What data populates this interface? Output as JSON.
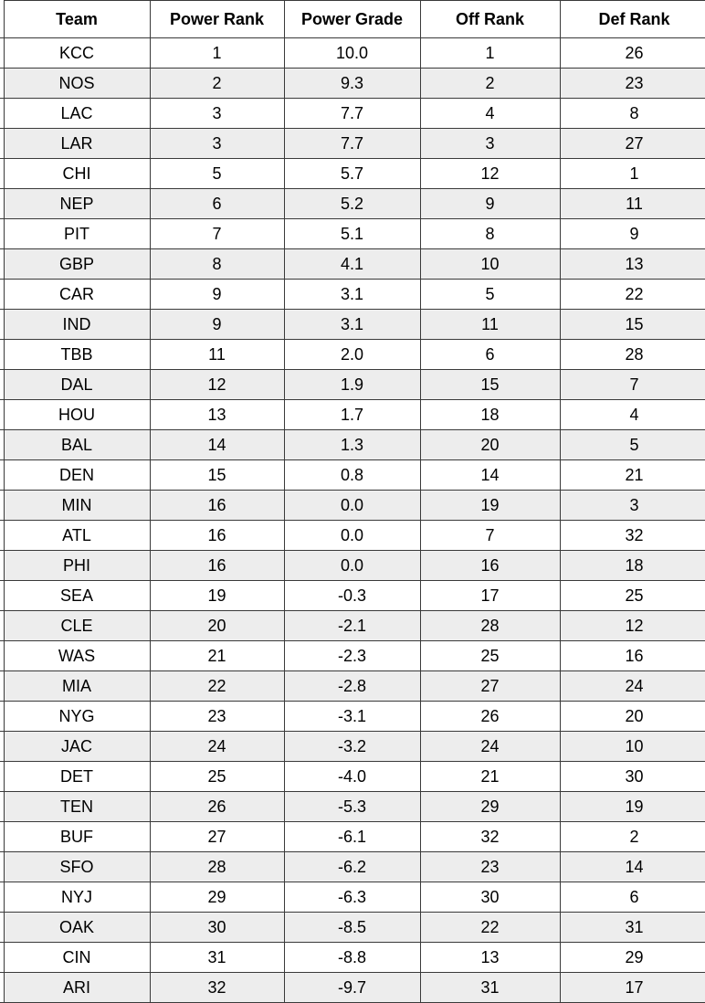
{
  "table": {
    "columns": [
      "Team",
      "Power Rank",
      "Power Grade",
      "Off Rank",
      "Def Rank"
    ],
    "rows": [
      [
        "KCC",
        "1",
        "10.0",
        "1",
        "26"
      ],
      [
        "NOS",
        "2",
        "9.3",
        "2",
        "23"
      ],
      [
        "LAC",
        "3",
        "7.7",
        "4",
        "8"
      ],
      [
        "LAR",
        "3",
        "7.7",
        "3",
        "27"
      ],
      [
        "CHI",
        "5",
        "5.7",
        "12",
        "1"
      ],
      [
        "NEP",
        "6",
        "5.2",
        "9",
        "11"
      ],
      [
        "PIT",
        "7",
        "5.1",
        "8",
        "9"
      ],
      [
        "GBP",
        "8",
        "4.1",
        "10",
        "13"
      ],
      [
        "CAR",
        "9",
        "3.1",
        "5",
        "22"
      ],
      [
        "IND",
        "9",
        "3.1",
        "11",
        "15"
      ],
      [
        "TBB",
        "11",
        "2.0",
        "6",
        "28"
      ],
      [
        "DAL",
        "12",
        "1.9",
        "15",
        "7"
      ],
      [
        "HOU",
        "13",
        "1.7",
        "18",
        "4"
      ],
      [
        "BAL",
        "14",
        "1.3",
        "20",
        "5"
      ],
      [
        "DEN",
        "15",
        "0.8",
        "14",
        "21"
      ],
      [
        "MIN",
        "16",
        "0.0",
        "19",
        "3"
      ],
      [
        "ATL",
        "16",
        "0.0",
        "7",
        "32"
      ],
      [
        "PHI",
        "16",
        "0.0",
        "16",
        "18"
      ],
      [
        "SEA",
        "19",
        "-0.3",
        "17",
        "25"
      ],
      [
        "CLE",
        "20",
        "-2.1",
        "28",
        "12"
      ],
      [
        "WAS",
        "21",
        "-2.3",
        "25",
        "16"
      ],
      [
        "MIA",
        "22",
        "-2.8",
        "27",
        "24"
      ],
      [
        "NYG",
        "23",
        "-3.1",
        "26",
        "20"
      ],
      [
        "JAC",
        "24",
        "-3.2",
        "24",
        "10"
      ],
      [
        "DET",
        "25",
        "-4.0",
        "21",
        "30"
      ],
      [
        "TEN",
        "26",
        "-5.3",
        "29",
        "19"
      ],
      [
        "BUF",
        "27",
        "-6.1",
        "32",
        "2"
      ],
      [
        "SFO",
        "28",
        "-6.2",
        "23",
        "14"
      ],
      [
        "NYJ",
        "29",
        "-6.3",
        "30",
        "6"
      ],
      [
        "OAK",
        "30",
        "-8.5",
        "22",
        "31"
      ],
      [
        "CIN",
        "31",
        "-8.8",
        "13",
        "29"
      ],
      [
        "ARI",
        "32",
        "-9.7",
        "31",
        "17"
      ]
    ]
  },
  "colors": {
    "stripe": "#ededed",
    "border": "#3a3a3a"
  }
}
